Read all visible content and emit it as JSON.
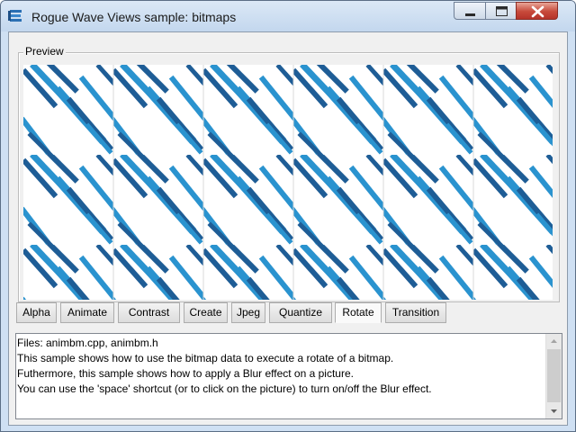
{
  "window": {
    "title": "Rogue Wave Views sample: bitmaps"
  },
  "preview": {
    "label": "Preview",
    "colors": {
      "light": "#2a93cf",
      "dark": "#1e5d96",
      "paper": "#ffffff"
    }
  },
  "tabs": [
    {
      "label": "Alpha",
      "selected": false
    },
    {
      "label": "Animate",
      "selected": false
    },
    {
      "label": "Contrast",
      "selected": false
    },
    {
      "label": "Create",
      "selected": false
    },
    {
      "label": "Jpeg",
      "selected": false
    },
    {
      "label": "Quantize",
      "selected": false
    },
    {
      "label": "Rotate",
      "selected": true
    },
    {
      "label": "Transition",
      "selected": false
    }
  ],
  "description": {
    "lines": [
      "Files: animbm.cpp, animbm.h",
      "This sample shows how to use the bitmap data to execute a rotate of a bitmap.",
      "Futhermore, this sample shows how to apply a Blur effect on a picture.",
      "You can use the 'space' shortcut (or to click on the picture) to turn on/off the Blur effect."
    ]
  }
}
